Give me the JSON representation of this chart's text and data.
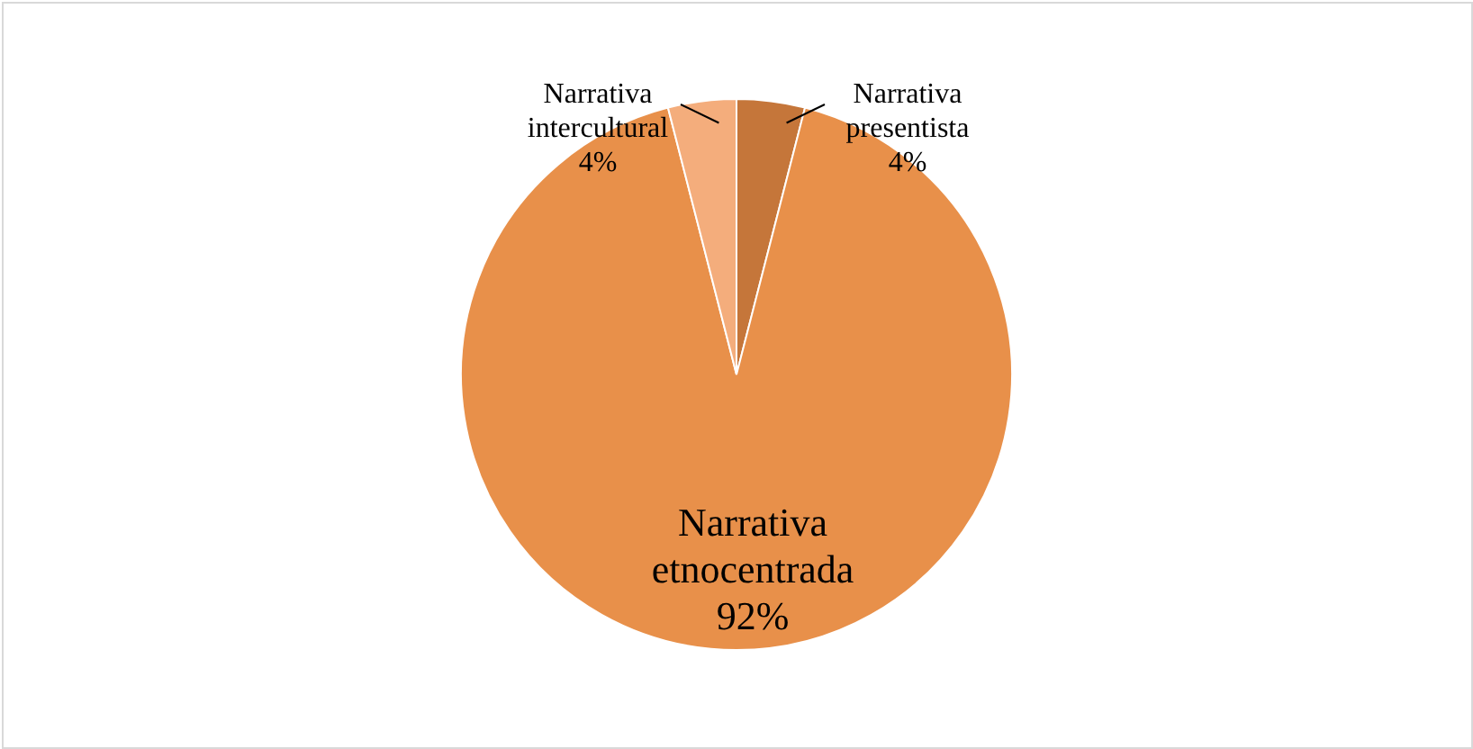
{
  "chart_data": {
    "type": "pie",
    "categories": [
      "Narrativa presentista",
      "Narrativa etnocentrada",
      "Narrativa intercultural"
    ],
    "values": [
      4,
      92,
      4
    ],
    "colors": [
      "#c5763a",
      "#e8904a",
      "#f4ad7c"
    ],
    "value_labels": [
      "4%",
      "92%",
      "4%"
    ]
  }
}
